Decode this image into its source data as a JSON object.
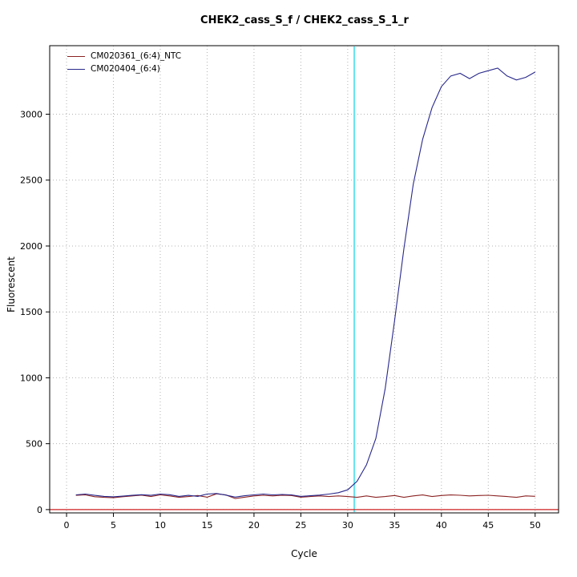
{
  "chart_data": {
    "type": "line",
    "title": "CHEK2_cass_S_f / CHEK2_cass_S_1_r",
    "xlabel": "Cycle",
    "ylabel": "Fluorescent",
    "xlim": [
      -1.8,
      52.5
    ],
    "ylim": [
      -25,
      3520
    ],
    "x_ticks": [
      0,
      5,
      10,
      15,
      20,
      25,
      30,
      35,
      40,
      45,
      50
    ],
    "y_ticks": [
      0,
      500,
      1000,
      1500,
      2000,
      2500,
      3000
    ],
    "grid": "dotted",
    "legend_position": "top-left",
    "x": [
      1,
      2,
      3,
      4,
      5,
      6,
      7,
      8,
      9,
      10,
      11,
      12,
      13,
      14,
      15,
      16,
      17,
      18,
      19,
      20,
      21,
      22,
      23,
      24,
      25,
      26,
      27,
      28,
      29,
      30,
      31,
      32,
      33,
      34,
      35,
      36,
      37,
      38,
      39,
      40,
      41,
      42,
      43,
      44,
      45,
      46,
      47,
      48,
      49,
      50
    ],
    "series": [
      {
        "name": "CM020361_(6:4)_NTC",
        "color": "#8b2323",
        "values": [
          108,
          112,
          98,
          93,
          90,
          98,
          104,
          110,
          99,
          112,
          104,
          93,
          99,
          107,
          94,
          120,
          111,
          84,
          94,
          104,
          109,
          104,
          109,
          107,
          94,
          99,
          104,
          99,
          104,
          99,
          93,
          104,
          93,
          99,
          107,
          93,
          104,
          111,
          99,
          107,
          111,
          109,
          104,
          107,
          109,
          104,
          99,
          93,
          104,
          101
        ]
      },
      {
        "name": "CM020404_(6:4)",
        "color": "#28288c",
        "values": [
          112,
          118,
          108,
          100,
          97,
          102,
          108,
          113,
          108,
          118,
          113,
          100,
          108,
          100,
          118,
          122,
          110,
          95,
          105,
          112,
          118,
          112,
          115,
          112,
          100,
          105,
          110,
          118,
          128,
          150,
          215,
          340,
          540,
          920,
          1430,
          1980,
          2470,
          2810,
          3050,
          3210,
          3290,
          3310,
          3270,
          3310,
          3330,
          3350,
          3290,
          3260,
          3280,
          3320
        ]
      }
    ],
    "threshold_line": {
      "y": 0,
      "color": "#d02020"
    },
    "ct_line": {
      "x": 30.7,
      "color": "#66e2f0"
    },
    "grid_color": "#b3b3b3",
    "box_color": "#000000"
  }
}
